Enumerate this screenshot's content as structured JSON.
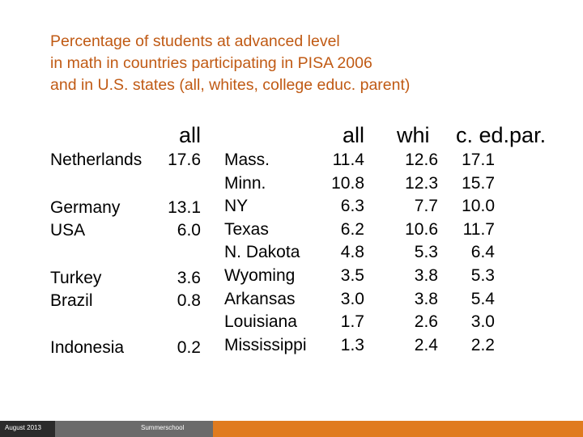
{
  "title": {
    "line1": "Percentage of students at advanced level",
    "line2": "in math in countries participating in PISA 2006",
    "line3": "and in U.S. states (all, whites, college educ. parent)"
  },
  "countries_table": {
    "header": "all",
    "rows": [
      {
        "name": "Netherlands",
        "value": "17.6"
      },
      {
        "name": "Germany",
        "value": "13.1"
      },
      {
        "name": "USA",
        "value": "6.0"
      },
      {
        "name": "Turkey",
        "value": "3.6"
      },
      {
        "name": "Brazil",
        "value": "0.8"
      },
      {
        "name": "Indonesia",
        "value": "0.2"
      }
    ]
  },
  "states_table": {
    "headers": [
      "all",
      "whi",
      "c. ed.par."
    ],
    "rows": [
      {
        "name": "Mass.",
        "all": "11.4",
        "whi": "12.6",
        "ced": "17.1"
      },
      {
        "name": "Minn.",
        "all": "10.8",
        "whi": "12.3",
        "ced": "15.7"
      },
      {
        "name": "NY",
        "all": "6.3",
        "whi": "7.7",
        "ced": "10.0"
      },
      {
        "name": "Texas",
        "all": "6.2",
        "whi": "10.6",
        "ced": "11.7"
      },
      {
        "name": "N. Dakota",
        "all": "4.8",
        "whi": "5.3",
        "ced": "6.4"
      },
      {
        "name": "Wyoming",
        "all": "3.5",
        "whi": "3.8",
        "ced": "5.3"
      },
      {
        "name": "Arkansas",
        "all": "3.0",
        "whi": "3.8",
        "ced": "5.4"
      },
      {
        "name": "Louisiana",
        "all": "1.7",
        "whi": "2.6",
        "ced": "3.0"
      },
      {
        "name": "Mississippi",
        "all": "1.3",
        "whi": "2.4",
        "ced": "2.2"
      }
    ]
  },
  "footer": {
    "date": "August 2013",
    "event": "Summerschool"
  },
  "colors": {
    "title": "#c05a14",
    "footer_left": "#2b2b2b",
    "footer_mid": "#6b6b6b",
    "footer_right": "#e07b1f"
  }
}
